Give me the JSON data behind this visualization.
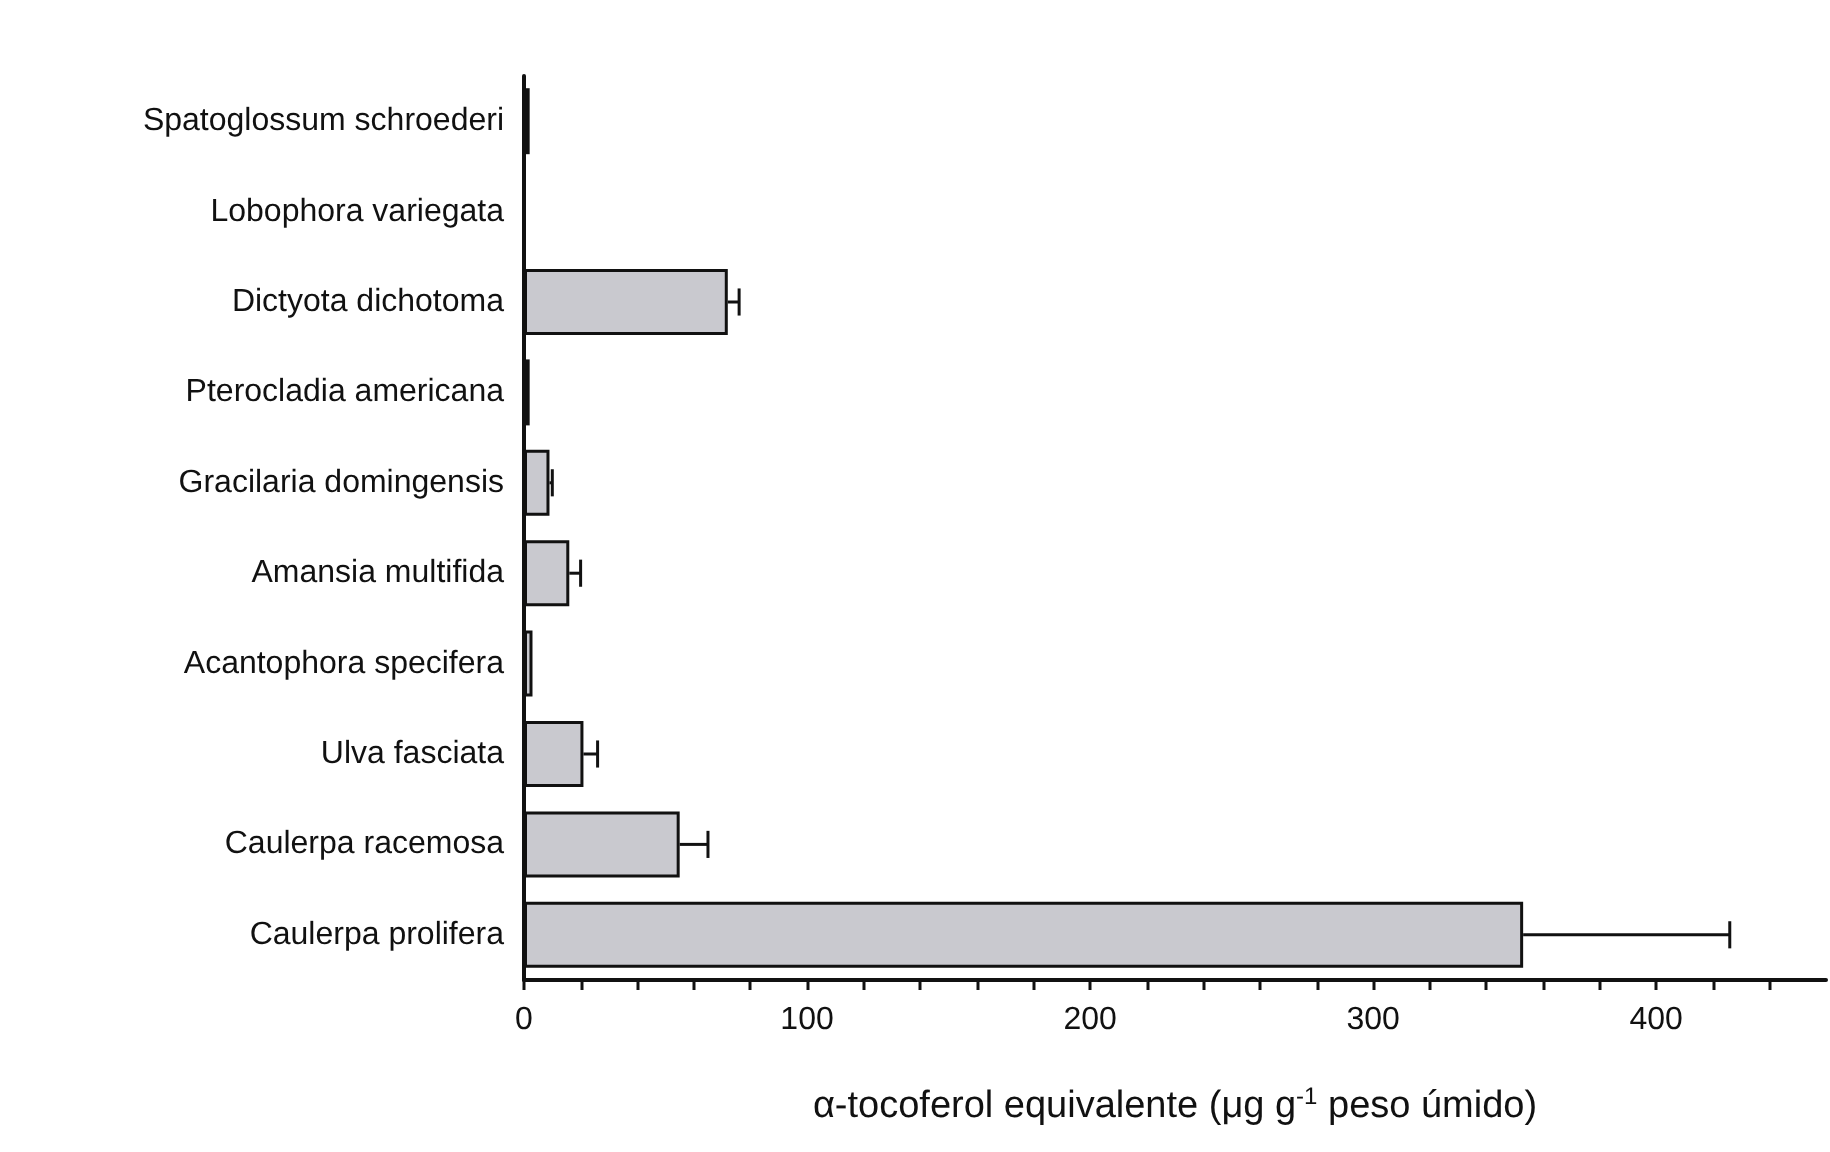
{
  "chart_data": {
    "type": "bar",
    "orientation": "horizontal",
    "xlabel": "α-tocoferol equivalente (μg g$^{-1}$ peso úmido)",
    "categories": [
      "Spatoglossum schroederi",
      "Lobophora variegata",
      "Dictyota dichotoma",
      "Pterocladia americana",
      "Gracilaria domingensis",
      "Amansia multifida",
      "Acantophora specifera",
      "Ulva fasciata",
      "Caulerpa racemosa",
      "Caulerpa prolifera"
    ],
    "values": [
      2,
      0,
      72,
      2,
      9,
      16,
      3,
      21,
      55,
      353
    ],
    "errors": [
      null,
      null,
      [
        72,
        76
      ],
      null,
      [
        9,
        10
      ],
      [
        16,
        20
      ],
      null,
      [
        21,
        26
      ],
      [
        55,
        65
      ],
      [
        353,
        426
      ]
    ],
    "color": "#c9c9cf",
    "xlim": [
      0,
      460
    ],
    "xticks": [
      0,
      {
        "value": 20,
        "label": null
      },
      {
        "value": 40,
        "label": null
      },
      {
        "value": 60,
        "label": null
      },
      {
        "value": 80,
        "label": null
      },
      100,
      {
        "value": 120,
        "label": null
      },
      {
        "value": 140,
        "label": null
      },
      {
        "value": 160,
        "label": null
      },
      {
        "value": 180,
        "label": null
      },
      200,
      {
        "value": 220,
        "label": null
      },
      {
        "value": 240,
        "label": null
      },
      {
        "value": 260,
        "label": null
      },
      {
        "value": 280,
        "label": null
      },
      300,
      {
        "value": 320,
        "label": null
      },
      {
        "value": 340,
        "label": null
      },
      {
        "value": 360,
        "label": null
      },
      {
        "value": 380,
        "label": null
      },
      400,
      {
        "value": 420,
        "label": null
      },
      {
        "value": 440,
        "label": null
      }
    ],
    "grid": false
  }
}
